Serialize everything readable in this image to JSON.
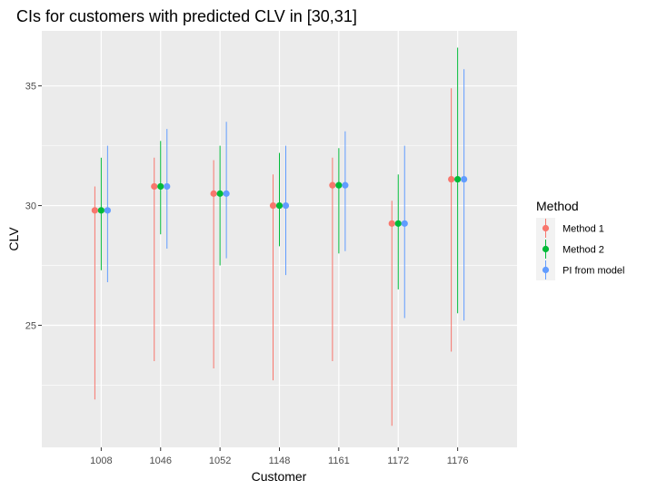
{
  "chart_data": {
    "type": "errorbar",
    "title": "CIs for customers with predicted CLV in [30,31]",
    "xlabel": "Customer",
    "ylabel": "CLV",
    "categories": [
      "1008",
      "1046",
      "1052",
      "1148",
      "1161",
      "1172",
      "1176"
    ],
    "ylim": [
      19.9,
      37.3
    ],
    "yticks": [
      25,
      30,
      35
    ],
    "grid": true,
    "legend": {
      "title": "Method",
      "position": "right"
    },
    "series": [
      {
        "name": "Method 1",
        "color": "#F8766D",
        "points": [
          {
            "category": "1008",
            "estimate": 29.8,
            "lower": 21.9,
            "upper": 30.8
          },
          {
            "category": "1046",
            "estimate": 30.8,
            "lower": 23.5,
            "upper": 32.0
          },
          {
            "category": "1052",
            "estimate": 30.5,
            "lower": 23.2,
            "upper": 31.9
          },
          {
            "category": "1148",
            "estimate": 30.0,
            "lower": 22.7,
            "upper": 31.3
          },
          {
            "category": "1161",
            "estimate": 30.85,
            "lower": 23.5,
            "upper": 32.0
          },
          {
            "category": "1172",
            "estimate": 29.25,
            "lower": 20.8,
            "upper": 30.2
          },
          {
            "category": "1176",
            "estimate": 31.1,
            "lower": 23.9,
            "upper": 34.9
          }
        ]
      },
      {
        "name": "Method 2",
        "color": "#00BA38",
        "points": [
          {
            "category": "1008",
            "estimate": 29.8,
            "lower": 27.3,
            "upper": 32.0
          },
          {
            "category": "1046",
            "estimate": 30.8,
            "lower": 28.8,
            "upper": 32.7
          },
          {
            "category": "1052",
            "estimate": 30.5,
            "lower": 27.5,
            "upper": 32.5
          },
          {
            "category": "1148",
            "estimate": 30.0,
            "lower": 28.3,
            "upper": 32.2
          },
          {
            "category": "1161",
            "estimate": 30.85,
            "lower": 28.0,
            "upper": 32.4
          },
          {
            "category": "1172",
            "estimate": 29.25,
            "lower": 26.5,
            "upper": 31.3
          },
          {
            "category": "1176",
            "estimate": 31.1,
            "lower": 25.5,
            "upper": 36.6
          }
        ]
      },
      {
        "name": "PI from model",
        "color": "#619CFF",
        "points": [
          {
            "category": "1008",
            "estimate": 29.8,
            "lower": 26.8,
            "upper": 32.5
          },
          {
            "category": "1046",
            "estimate": 30.8,
            "lower": 28.2,
            "upper": 33.2
          },
          {
            "category": "1052",
            "estimate": 30.5,
            "lower": 27.8,
            "upper": 33.5
          },
          {
            "category": "1148",
            "estimate": 30.0,
            "lower": 27.1,
            "upper": 32.5
          },
          {
            "category": "1161",
            "estimate": 30.85,
            "lower": 28.1,
            "upper": 33.1
          },
          {
            "category": "1172",
            "estimate": 29.25,
            "lower": 25.3,
            "upper": 32.5
          },
          {
            "category": "1176",
            "estimate": 31.1,
            "lower": 25.2,
            "upper": 35.7
          }
        ]
      }
    ]
  }
}
